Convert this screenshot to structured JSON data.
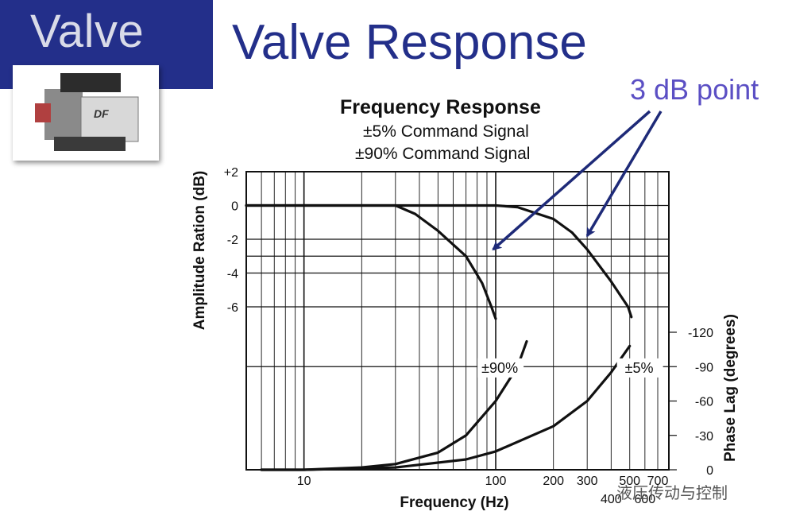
{
  "slide": {
    "corner_label": "Valve",
    "title": "Valve Response",
    "callout": "3 dB point",
    "watermark": "液压传动与控制"
  },
  "valve_image": {
    "badge_text": "DF"
  },
  "chart_data": {
    "type": "line",
    "title": "Frequency Response",
    "subtitles": [
      "±5% Command Signal",
      "±90% Command Signal"
    ],
    "xlabel": "Frequency (Hz)",
    "ylabel_left": "Amplitude Ration (dB)",
    "ylabel_right": "Phase Lag (degrees)",
    "x_scale": "log",
    "xlim": [
      5,
      800
    ],
    "x_ticks": [
      {
        "value": 10,
        "label": "10"
      },
      {
        "value": 100,
        "label": "100"
      },
      {
        "value": 200,
        "label": "200"
      },
      {
        "value": 300,
        "label": "300"
      },
      {
        "value": 400,
        "label": "400"
      },
      {
        "value": 500,
        "label": "500"
      },
      {
        "value": 600,
        "label": "600"
      },
      {
        "value": 700,
        "label": "700"
      }
    ],
    "amplitude_ticks": [
      {
        "value": 2,
        "label": "+2"
      },
      {
        "value": 0,
        "label": "0"
      },
      {
        "value": -2,
        "label": "-2"
      },
      {
        "value": -4,
        "label": "-4"
      },
      {
        "value": -6,
        "label": "-6"
      }
    ],
    "phase_ticks": [
      {
        "value": -120,
        "label": "-120"
      },
      {
        "value": -90,
        "label": "-90"
      },
      {
        "value": -60,
        "label": "-60"
      },
      {
        "value": -30,
        "label": "-30"
      },
      {
        "value": 0,
        "label": "0"
      }
    ],
    "grid": true,
    "series": [
      {
        "name": "±90%",
        "quantity": "amplitude_db",
        "points": [
          [
            5,
            0
          ],
          [
            10,
            0
          ],
          [
            25,
            0
          ],
          [
            30,
            0
          ],
          [
            38,
            -0.5
          ],
          [
            50,
            -1.5
          ],
          [
            70,
            -3
          ],
          [
            85,
            -4.6
          ],
          [
            95,
            -6
          ],
          [
            100,
            -6.7
          ]
        ]
      },
      {
        "name": "±5%",
        "quantity": "amplitude_db",
        "points": [
          [
            5,
            0
          ],
          [
            20,
            0
          ],
          [
            80,
            0
          ],
          [
            100,
            0
          ],
          [
            130,
            -0.1
          ],
          [
            200,
            -0.8
          ],
          [
            250,
            -1.6
          ],
          [
            300,
            -2.6
          ],
          [
            400,
            -4.5
          ],
          [
            490,
            -6.0
          ],
          [
            510,
            -6.6
          ]
        ]
      },
      {
        "name": "±90%",
        "quantity": "phase_deg",
        "points": [
          [
            6,
            0
          ],
          [
            10,
            0
          ],
          [
            20,
            -2
          ],
          [
            30,
            -5
          ],
          [
            50,
            -15
          ],
          [
            70,
            -30
          ],
          [
            100,
            -60
          ],
          [
            130,
            -90
          ],
          [
            145,
            -112
          ]
        ]
      },
      {
        "name": "±5%",
        "quantity": "phase_deg",
        "points": [
          [
            6,
            0
          ],
          [
            10,
            0
          ],
          [
            30,
            -2
          ],
          [
            70,
            -9
          ],
          [
            100,
            -16
          ],
          [
            200,
            -38
          ],
          [
            300,
            -60
          ],
          [
            400,
            -85
          ],
          [
            500,
            -108
          ]
        ]
      }
    ],
    "annotations": [
      {
        "text": "±90%",
        "x": 105,
        "amplitude_db": -9.9
      },
      {
        "text": "±5%",
        "x": 560,
        "amplitude_db": -9.9
      }
    ],
    "arrows": [
      {
        "label": "3 dB point",
        "target_series": "±90%",
        "target": [
          97,
          -2.6
        ]
      },
      {
        "label": "3 dB point",
        "target_series": "±5%",
        "target": [
          300,
          -1.8
        ]
      }
    ]
  }
}
